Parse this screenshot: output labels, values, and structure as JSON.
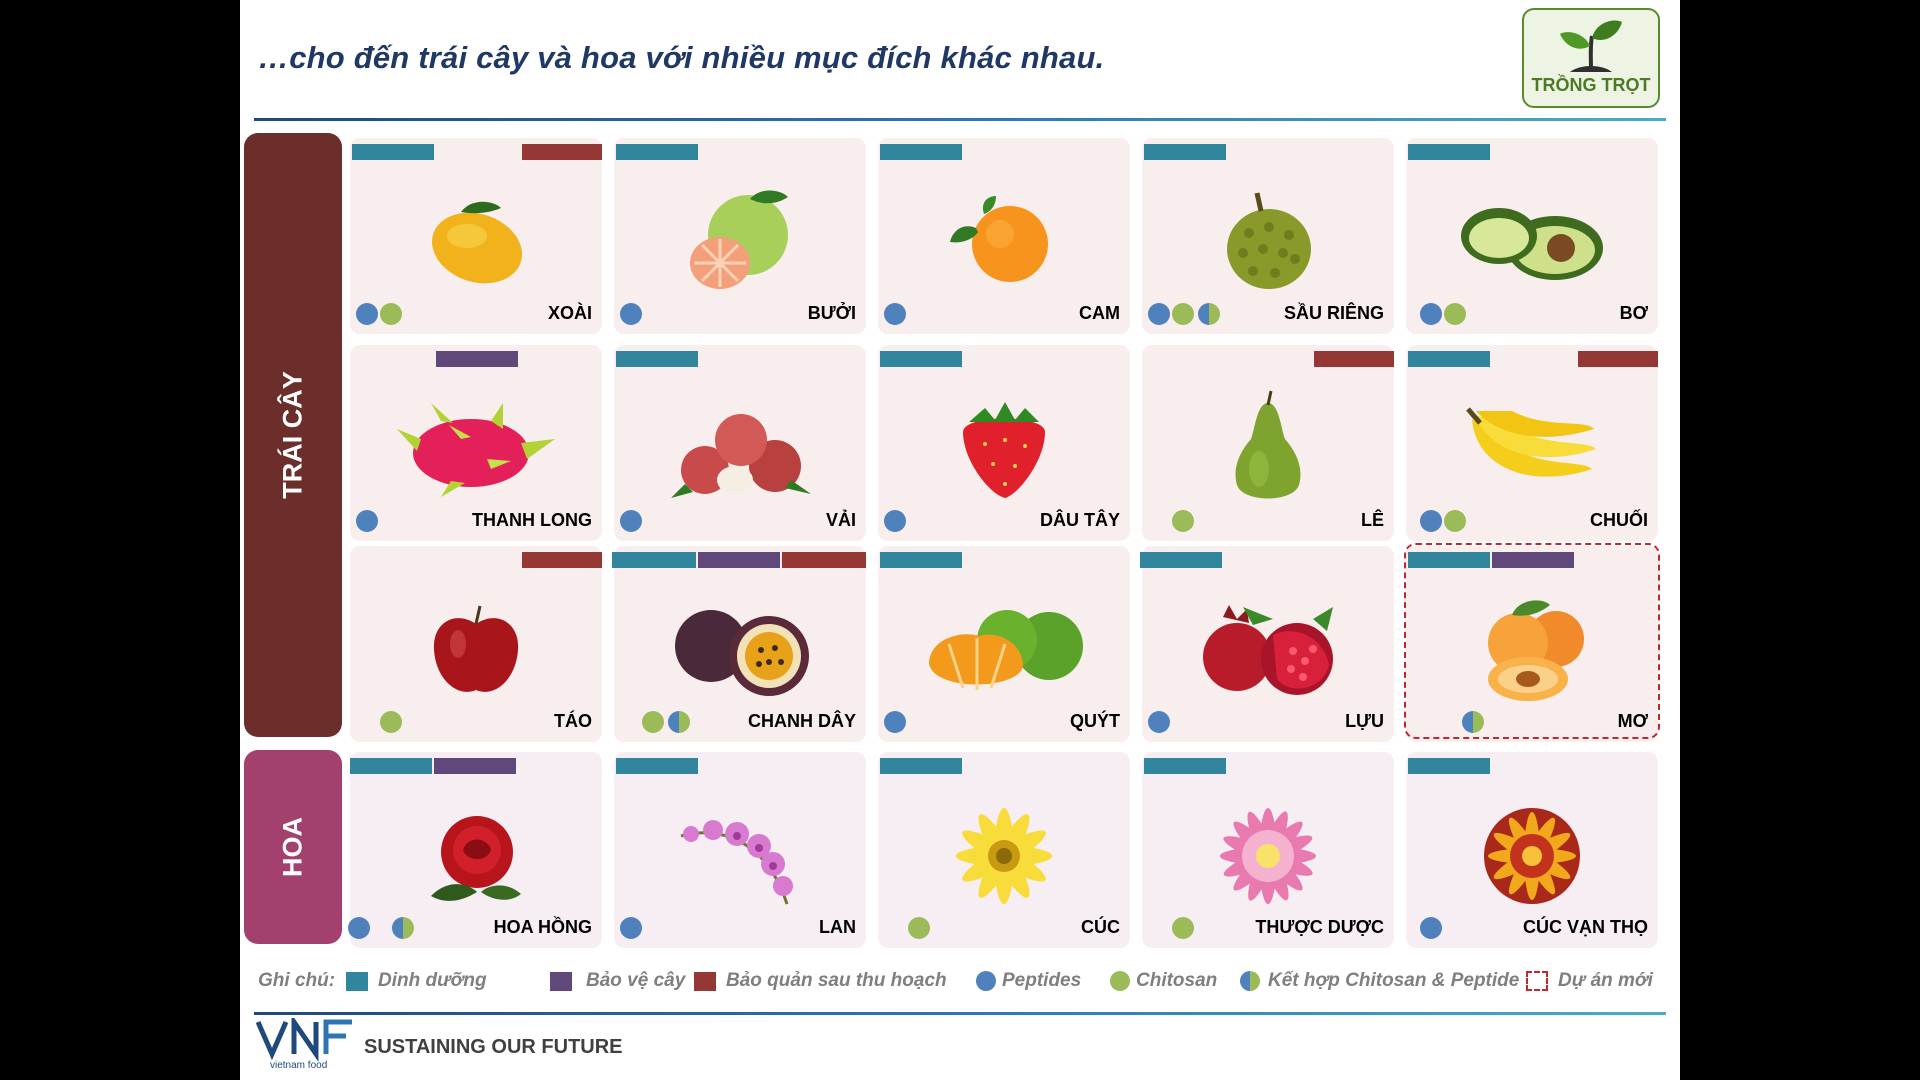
{
  "title": "…cho đến trái cây và hoa với nhiều mục đích khác nhau.",
  "badge": {
    "label": "TRỒNG TRỌT",
    "icon": "sprout-icon"
  },
  "categories": {
    "fruit": "TRÁI CÂY",
    "flower": "HOA"
  },
  "colors": {
    "nutrition": "#31859c",
    "protection": "#60497a",
    "postharvest": "#953735",
    "peptides": "#4f81bd",
    "chitosan": "#9bbb59",
    "new_project": "#c0282e",
    "fruit_band": "#6b2e2a",
    "flower_band": "#a3406e"
  },
  "fruits": [
    {
      "name": "XOÀI",
      "icon": "mango-icon"
    },
    {
      "name": "BƯỞI",
      "icon": "pomelo-icon"
    },
    {
      "name": "CAM",
      "icon": "orange-icon"
    },
    {
      "name": "SẦU RIÊNG",
      "icon": "durian-icon"
    },
    {
      "name": "BƠ",
      "icon": "avocado-icon"
    },
    {
      "name": "THANH LONG",
      "icon": "dragon-fruit-icon"
    },
    {
      "name": "VẢI",
      "icon": "lychee-icon"
    },
    {
      "name": "DÂU TÂY",
      "icon": "strawberry-icon"
    },
    {
      "name": "LÊ",
      "icon": "pear-icon"
    },
    {
      "name": "CHUỐI",
      "icon": "banana-icon"
    },
    {
      "name": "TÁO",
      "icon": "apple-icon"
    },
    {
      "name": "CHANH DÂY",
      "icon": "passion-fruit-icon"
    },
    {
      "name": "QUÝT",
      "icon": "tangerine-icon"
    },
    {
      "name": "LỰU",
      "icon": "pomegranate-icon"
    },
    {
      "name": "MƠ",
      "icon": "apricot-icon"
    }
  ],
  "flowers": [
    {
      "name": "HOA HỒNG",
      "icon": "rose-icon"
    },
    {
      "name": "LAN",
      "icon": "orchid-icon"
    },
    {
      "name": "CÚC",
      "icon": "daisy-icon"
    },
    {
      "name": "THƯỢC DƯỢC",
      "icon": "dahlia-icon"
    },
    {
      "name": "CÚC VẠN THỌ",
      "icon": "marigold-icon"
    }
  ],
  "legend": {
    "prefix": "Ghi chú:",
    "nutrition": "Dinh dưỡng",
    "protection": "Bảo vệ cây",
    "postharvest": "Bảo quản sau thu hoạch",
    "peptides": "Peptides",
    "chitosan": "Chitosan",
    "combined": "Kết hợp Chitosan & Peptide",
    "new_project": "Dự án mới"
  },
  "footer": {
    "brand": "VNF",
    "brand_sub": "vietnam food",
    "tagline": "SUSTAINING OUR FUTURE"
  }
}
